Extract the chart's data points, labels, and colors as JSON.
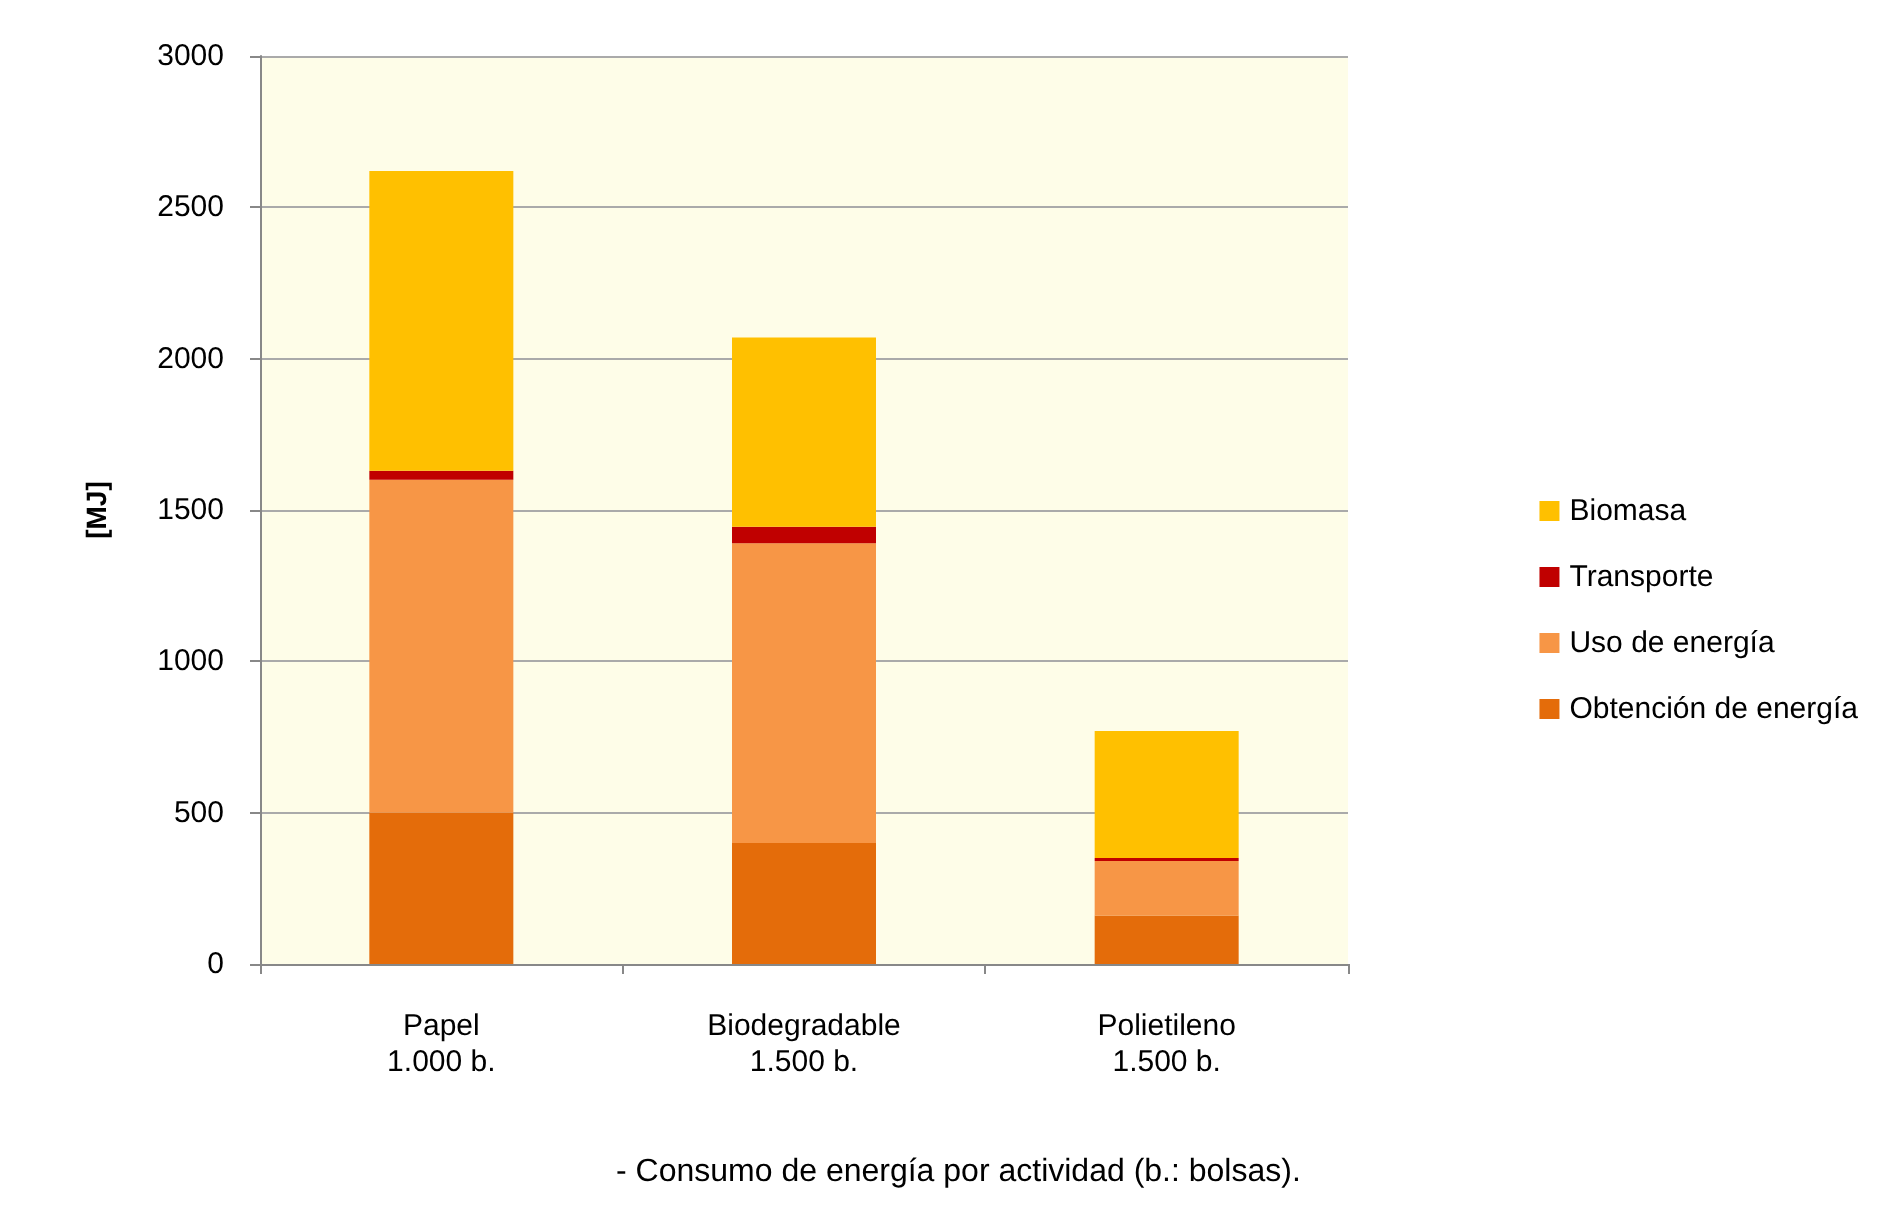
{
  "chart_data": {
    "type": "bar",
    "stacked": true,
    "ylabel": "[MJ]",
    "categories": [
      "Papel\n1.000 b.",
      "Biodegradable\n1.500 b.",
      "Polietileno\n1.500 b."
    ],
    "series": [
      {
        "name": "Obtención de energía",
        "color": "#e46c0a",
        "values": [
          500,
          400,
          160
        ]
      },
      {
        "name": "Uso de energía",
        "color": "#f79646",
        "values": [
          1100,
          990,
          180
        ]
      },
      {
        "name": "Transporte",
        "color": "#c00000",
        "values": [
          30,
          55,
          10
        ]
      },
      {
        "name": "Biomasa",
        "color": "#ffc000",
        "values": [
          990,
          625,
          420
        ]
      }
    ],
    "ylim": [
      0,
      3000
    ],
    "yticks": [
      0,
      500,
      1000,
      1500,
      2000,
      2500,
      3000
    ],
    "grid": "y",
    "legend": "right",
    "annotations": [
      "- Consumo de energía por actividad (b.: bolsas)."
    ]
  }
}
